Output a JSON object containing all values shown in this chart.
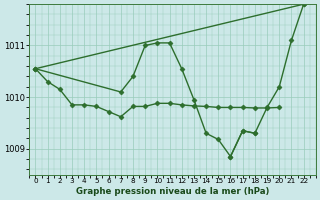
{
  "bg_color": "#cce8e8",
  "grid_color": "#99ccbb",
  "line_color": "#2d6e2d",
  "marker": "D",
  "markersize": 2.5,
  "linewidth": 1.0,
  "title": "Graphe pression niveau de la mer (hPa)",
  "ylim": [
    1008.5,
    1011.8
  ],
  "yticks": [
    1009,
    1010,
    1011
  ],
  "xlim": [
    -0.5,
    23.0
  ],
  "lines": [
    {
      "x": [
        0,
        1,
        2,
        3,
        4,
        5,
        6,
        7,
        8,
        9,
        10,
        11,
        12,
        13,
        14,
        15,
        16,
        17,
        18,
        19,
        20
      ],
      "y": [
        1010.55,
        1010.3,
        1010.15,
        1009.85,
        1009.85,
        1009.82,
        1009.72,
        1009.62,
        1009.82,
        1009.82,
        1009.88,
        1009.88,
        1009.85,
        1009.83,
        1009.82,
        1009.8,
        1009.8,
        1009.8,
        1009.79,
        1009.79,
        1009.8
      ]
    },
    {
      "x": [
        0,
        7,
        8,
        9,
        10,
        11,
        12,
        13,
        14,
        15,
        16,
        17,
        18
      ],
      "y": [
        1010.55,
        1010.1,
        1010.4,
        1011.0,
        1011.05,
        1011.05,
        1010.55,
        1009.95,
        1009.3,
        1009.18,
        1008.85,
        1009.35,
        1009.3
      ]
    },
    {
      "x": [
        0,
        22
      ],
      "y": [
        1010.55,
        1011.8
      ]
    },
    {
      "x": [
        16,
        17,
        18,
        19,
        20,
        21,
        22
      ],
      "y": [
        1008.85,
        1009.35,
        1009.3,
        1009.8,
        1010.2,
        1011.1,
        1011.8
      ]
    }
  ]
}
